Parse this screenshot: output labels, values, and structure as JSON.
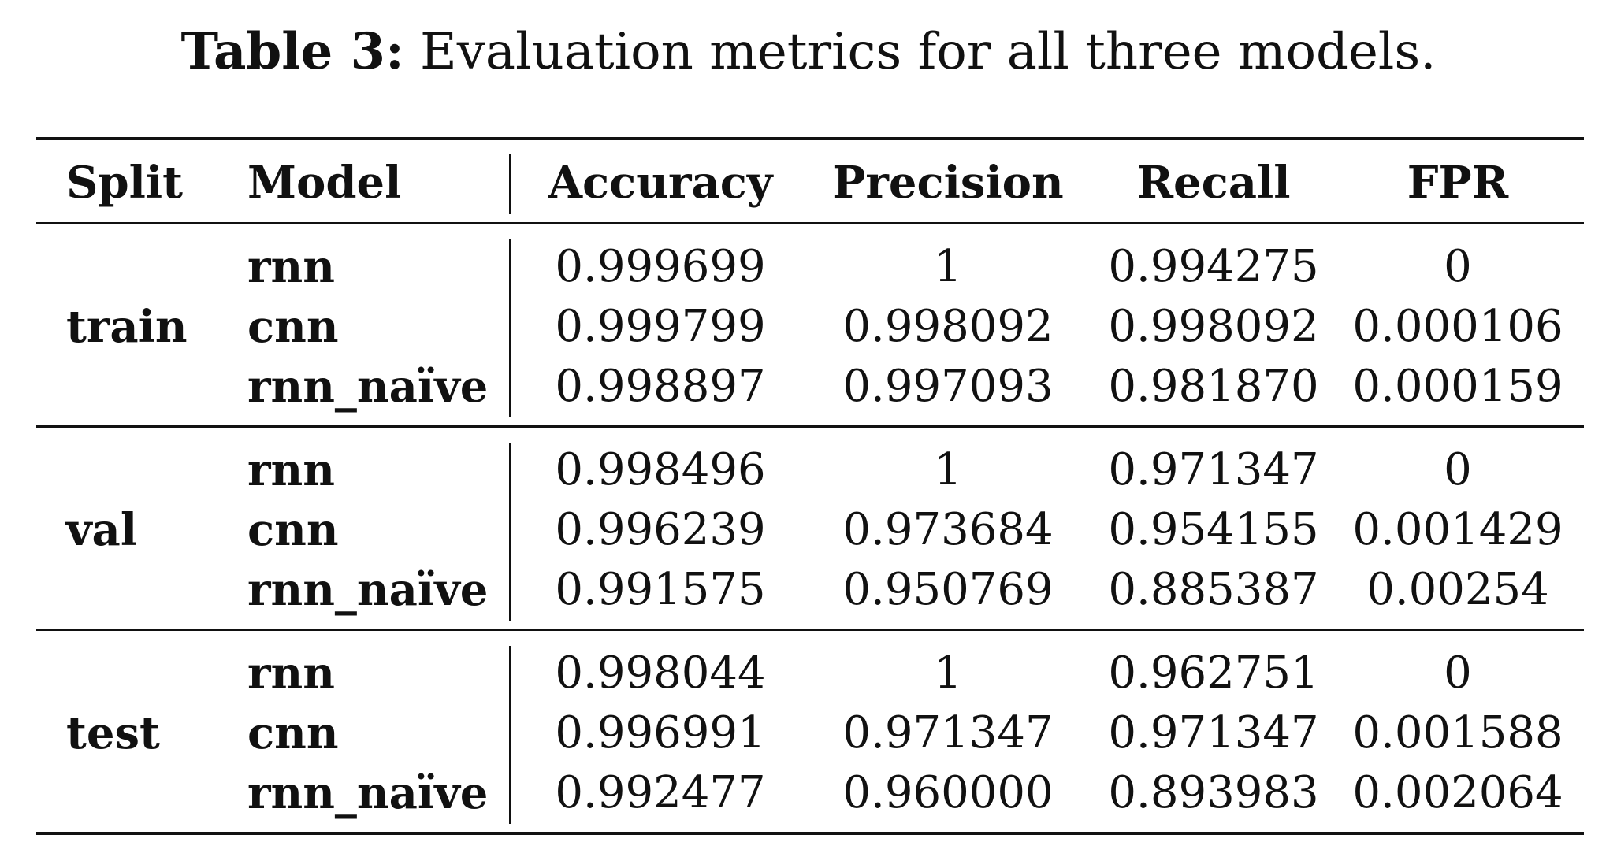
{
  "caption": {
    "label": "Table 3:",
    "text": "Evaluation metrics for all three models."
  },
  "table": {
    "headers": [
      "Split",
      "Model",
      "Accuracy",
      "Precision",
      "Recall",
      "FPR"
    ],
    "groups": [
      {
        "split": "train",
        "rows": [
          {
            "model": "rnn",
            "accuracy": "0.999699",
            "precision": "1",
            "recall": "0.994275",
            "fpr": "0"
          },
          {
            "model": "cnn",
            "accuracy": "0.999799",
            "precision": "0.998092",
            "recall": "0.998092",
            "fpr": "0.000106"
          },
          {
            "model": "rnn_naïve",
            "accuracy": "0.998897",
            "precision": "0.997093",
            "recall": "0.981870",
            "fpr": "0.000159"
          }
        ]
      },
      {
        "split": "val",
        "rows": [
          {
            "model": "rnn",
            "accuracy": "0.998496",
            "precision": "1",
            "recall": "0.971347",
            "fpr": "0"
          },
          {
            "model": "cnn",
            "accuracy": "0.996239",
            "precision": "0.973684",
            "recall": "0.954155",
            "fpr": "0.001429"
          },
          {
            "model": "rnn_naïve",
            "accuracy": "0.991575",
            "precision": "0.950769",
            "recall": "0.885387",
            "fpr": "0.00254"
          }
        ]
      },
      {
        "split": "test",
        "rows": [
          {
            "model": "rnn",
            "accuracy": "0.998044",
            "precision": "1",
            "recall": "0.962751",
            "fpr": "0"
          },
          {
            "model": "cnn",
            "accuracy": "0.996991",
            "precision": "0.971347",
            "recall": "0.971347",
            "fpr": "0.001588"
          },
          {
            "model": "rnn_naïve",
            "accuracy": "0.992477",
            "precision": "0.960000",
            "recall": "0.893983",
            "fpr": "0.002064"
          }
        ]
      }
    ]
  }
}
